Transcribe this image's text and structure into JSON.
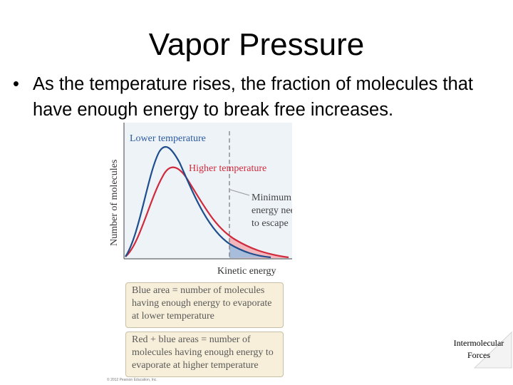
{
  "slide": {
    "title": "Vapor Pressure",
    "bullet_symbol": "•",
    "bullet_line1": "As the temperature rises, the fraction of molecules that",
    "bullet_line2": "have enough energy to break free increases."
  },
  "figure": {
    "ylabel": "Number of molecules",
    "xlabel": "Kinetic energy",
    "label_lower": "Lower temperature",
    "label_higher": "Higher temperature",
    "threshold_label": [
      "Minimum kinetic",
      "energy needed",
      "to escape"
    ],
    "box1_lines": [
      "Blue area = number of molecules",
      "having enough energy to evaporate",
      "at lower temperature"
    ],
    "box2_lines": [
      "Red + blue areas = number of",
      "molecules having enough energy to",
      "evaporate at higher temperature"
    ],
    "copyright": "© 2012 Pearson Education, Inc.",
    "colors": {
      "lower": "#1f4e8c",
      "higher": "#d02a3c",
      "lower_text": "#2a5aa0",
      "higher_text": "#d02a3c",
      "box_fill": "#f7efd9"
    }
  },
  "footer": {
    "line1": "Intermolecular",
    "line2": "Forces"
  }
}
